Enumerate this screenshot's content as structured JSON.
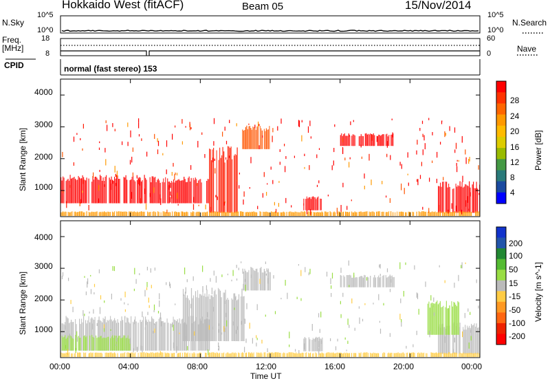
{
  "header": {
    "title": "Hokkaido West (fitACF)",
    "beam": "Beam 05",
    "date": "15/Nov/2014"
  },
  "top_panels": {
    "nsky_label": "N.Sky",
    "nsky_ticks": [
      "10^5",
      "10^0"
    ],
    "nsearch_label": "N.Search",
    "freq_label": "Freq.",
    "freq_unit": "[MHz]",
    "freq_ticks": [
      "18",
      "8"
    ],
    "nave_ticks": [
      "60",
      "0"
    ],
    "nave_label": "Nave",
    "cpid_label": "CPID",
    "cpid_text": "normal (fast stereo) 153"
  },
  "axes": {
    "ylabel": "Slant Range [km]",
    "yticks": [
      "4000",
      "3000",
      "2000",
      "1000"
    ],
    "xticks": [
      "00:00",
      "04:00",
      "08:00",
      "12:00",
      "16:00",
      "20:00",
      "00:00"
    ],
    "xlabel": "Time UT"
  },
  "power_scale": {
    "label": "Power [dB]",
    "ticks": [
      "28",
      "24",
      "20",
      "16",
      "12",
      "8",
      "4"
    ],
    "colors": [
      "#ff0000",
      "#ff3300",
      "#ff6600",
      "#ff9900",
      "#ffbb00",
      "#ddcc00",
      "#99bb00",
      "#449944",
      "#2a7a7a",
      "#1a4aa0",
      "#0000ff"
    ]
  },
  "velocity_scale": {
    "label": "Velocity [m s^-1]",
    "ticks": [
      "200",
      "100",
      "50",
      "15",
      "-15",
      "-50",
      "-100",
      "-200"
    ],
    "colors": [
      "#1133cc",
      "#2255aa",
      "#228833",
      "#55bb33",
      "#99dd44",
      "#bbbbbb",
      "#ffcc44",
      "#ff9922",
      "#ff6611",
      "#ee2200",
      "#ff0000"
    ]
  },
  "chart_data": {
    "type": "heatmap",
    "x_range_hours": [
      0,
      24
    ],
    "y_range_km": [
      180,
      4500
    ],
    "power_regions": [
      {
        "t0": 0.0,
        "t1": 4.9,
        "r0": 600,
        "r1": 1500,
        "color": "#ff0000"
      },
      {
        "t0": 5.1,
        "t1": 8.5,
        "r0": 600,
        "r1": 1450,
        "color": "#ff0000"
      },
      {
        "t0": 8.5,
        "t1": 10.2,
        "r0": 300,
        "r1": 2400,
        "color": "#ff1a00"
      },
      {
        "t0": 10.4,
        "t1": 12.0,
        "r0": 2300,
        "r1": 3050,
        "color": "#ff5500"
      },
      {
        "t0": 13.9,
        "t1": 15.0,
        "r0": 380,
        "r1": 850,
        "color": "#ff0000"
      },
      {
        "t0": 16.0,
        "t1": 19.1,
        "r0": 2400,
        "r1": 2800,
        "color": "#ff0000"
      },
      {
        "t0": 21.6,
        "t1": 24.0,
        "r0": 300,
        "r1": 1300,
        "color": "#ff0000"
      },
      {
        "t0": 0.0,
        "t1": 24.0,
        "r0": 200,
        "r1": 350,
        "color": "#ff9900"
      }
    ],
    "velocity_regions": [
      {
        "t0": 0.0,
        "t1": 8.5,
        "r0": 400,
        "r1": 1500,
        "color": "#bbbbbb"
      },
      {
        "t0": 0.0,
        "t1": 4.0,
        "r0": 400,
        "r1": 900,
        "color": "#99dd44"
      },
      {
        "t0": 7.0,
        "t1": 10.5,
        "r0": 700,
        "r1": 2400,
        "color": "#bbbbbb"
      },
      {
        "t0": 10.4,
        "t1": 12.0,
        "r0": 2300,
        "r1": 3050,
        "color": "#bbbbbb"
      },
      {
        "t0": 13.9,
        "t1": 15.0,
        "r0": 380,
        "r1": 850,
        "color": "#bbbbbb"
      },
      {
        "t0": 16.0,
        "t1": 19.1,
        "r0": 2400,
        "r1": 2800,
        "color": "#bbbbbb"
      },
      {
        "t0": 21.6,
        "t1": 24.0,
        "r0": 300,
        "r1": 1300,
        "color": "#bbbbbb"
      },
      {
        "t0": 21.0,
        "t1": 22.8,
        "r0": 900,
        "r1": 2000,
        "color": "#99dd44"
      },
      {
        "t0": 0.0,
        "t1": 24.0,
        "r0": 200,
        "r1": 350,
        "color": "#ffcc44"
      }
    ],
    "xlabel": "Time UT",
    "ylabel": "Slant Range [km]"
  }
}
